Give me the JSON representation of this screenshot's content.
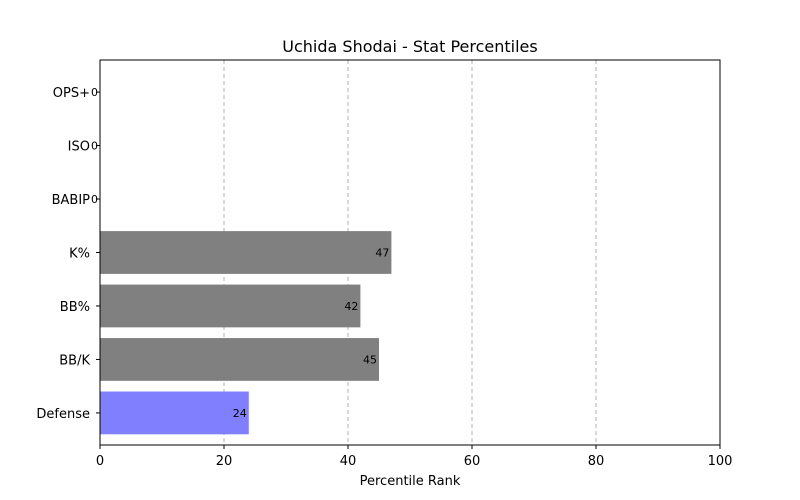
{
  "chart_data": {
    "type": "bar",
    "orientation": "horizontal",
    "title": "Uchida Shodai - Stat Percentiles",
    "xlabel": "Percentile Rank",
    "ylabel": "",
    "xlim": [
      0,
      100
    ],
    "xticks": [
      0,
      20,
      40,
      60,
      80,
      100
    ],
    "grid": "x-dashed",
    "categories": [
      "OPS+",
      "ISO",
      "BABIP",
      "K%",
      "BB%",
      "BB/K",
      "Defense"
    ],
    "values": [
      0,
      0,
      0,
      47,
      42,
      45,
      24
    ],
    "bar_colors": [
      "#808080",
      "#808080",
      "#808080",
      "#808080",
      "#808080",
      "#808080",
      "#8080ff"
    ]
  }
}
